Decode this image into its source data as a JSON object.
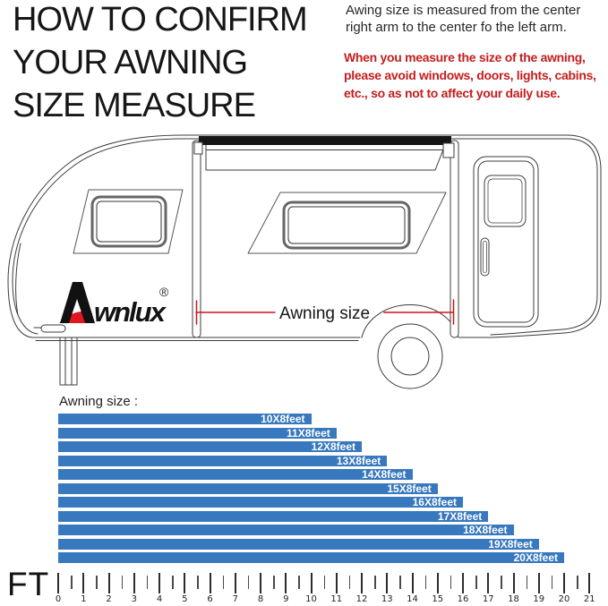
{
  "header": {
    "title_lines": [
      "HOW TO CONFIRM",
      "YOUR AWNING",
      "SIZE MEASURE"
    ],
    "note_lines": [
      "Awing size is measured from the center",
      "right arm to the center fo the left arm."
    ],
    "warning_lines": [
      "When you measure the size of the awning,",
      "please avoid windows, doors, lights, cabins,",
      "etc., so as not to affect your daily use."
    ],
    "warning_color": "#C41D1D"
  },
  "diagram": {
    "brand_text": "wnlux",
    "registered_mark": "®",
    "measure_label": "Awning size",
    "brand_red": "#E3151E",
    "measure_line_color": "#CC1616"
  },
  "chart_data": {
    "type": "bar",
    "orientation": "horizontal",
    "title": "Awning size :",
    "unit_label": "FT",
    "categories": [
      "10X8feet",
      "11X8feet",
      "12X8feet",
      "13X8feet",
      "14X8feet",
      "15X8feet",
      "16X8feet",
      "17X8feet",
      "18X8feet",
      "19X8feet",
      "20X8feet"
    ],
    "values": [
      10,
      11,
      12,
      13,
      14,
      15,
      16,
      17,
      18,
      19,
      20
    ],
    "xlim": [
      0,
      21
    ],
    "x_ticks": [
      0,
      1,
      2,
      3,
      4,
      5,
      6,
      7,
      8,
      9,
      10,
      11,
      12,
      13,
      14,
      15,
      16,
      17,
      18,
      19,
      20,
      21
    ],
    "minor_tick_step": 0.5,
    "bar_color": "#3878BE",
    "bar_label_color": "#FFFFFF",
    "legend": "none",
    "grid": "off"
  }
}
